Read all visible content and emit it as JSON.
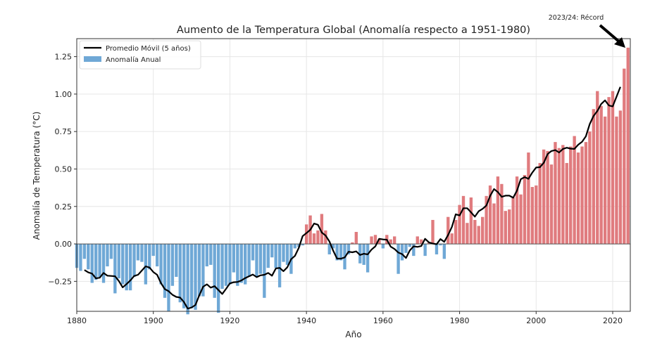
{
  "chart_data": {
    "type": "bar",
    "title": "Aumento de la Temperatura Global (Anomalía respecto a 1951-1980)",
    "xlabel": "Año",
    "ylabel": "Anomalía de Temperatura (°C)",
    "xlim": [
      1880,
      2024.6
    ],
    "ylim": [
      -0.45,
      1.37
    ],
    "grid": true,
    "xticks": [
      1880,
      1900,
      1920,
      1940,
      1960,
      1980,
      2000,
      2020
    ],
    "xtick_labels": [
      "1880",
      "1900",
      "1920",
      "1940",
      "1960",
      "1980",
      "2000",
      "2020"
    ],
    "yticks": [
      -0.25,
      0.0,
      0.25,
      0.5,
      0.75,
      1.0,
      1.25
    ],
    "ytick_labels": [
      "−0.25",
      "0.00",
      "0.25",
      "0.50",
      "0.75",
      "1.00",
      "1.25"
    ],
    "legend": {
      "placement": "top-left",
      "entries": [
        {
          "label": "Promedio Móvil (5 años)",
          "kind": "line",
          "color": "#000000"
        },
        {
          "label": "Anomalía Anual",
          "kind": "bar",
          "color": "#6fa8d6"
        }
      ]
    },
    "colors": {
      "positive": "#e07b7e",
      "negative": "#6fa8d6",
      "line": "#000000",
      "zero_line": "#555555"
    },
    "annotation": {
      "text": "2023/24: Récord",
      "target_year": 2024,
      "target_value": 1.31
    },
    "annual_anomaly": {
      "start_year": 1880,
      "values": [
        -0.16,
        -0.18,
        -0.1,
        -0.17,
        -0.26,
        -0.24,
        -0.22,
        -0.26,
        -0.15,
        -0.1,
        -0.33,
        -0.23,
        -0.27,
        -0.31,
        -0.31,
        -0.22,
        -0.11,
        -0.12,
        -0.27,
        -0.17,
        -0.08,
        -0.15,
        -0.27,
        -0.36,
        -0.45,
        -0.28,
        -0.22,
        -0.39,
        -0.43,
        -0.47,
        -0.43,
        -0.44,
        -0.35,
        -0.35,
        -0.15,
        -0.14,
        -0.36,
        -0.46,
        -0.3,
        -0.28,
        -0.27,
        -0.19,
        -0.28,
        -0.26,
        -0.27,
        -0.22,
        -0.11,
        -0.22,
        -0.2,
        -0.36,
        -0.16,
        -0.09,
        -0.16,
        -0.29,
        -0.12,
        -0.14,
        -0.2,
        -0.03,
        -0.02,
        -0.01,
        0.13,
        0.19,
        0.07,
        0.09,
        0.2,
        0.09,
        -0.07,
        -0.03,
        -0.11,
        -0.11,
        -0.17,
        -0.07,
        0.01,
        0.08,
        -0.13,
        -0.14,
        -0.19,
        0.05,
        0.06,
        0.03,
        -0.03,
        0.06,
        0.03,
        0.05,
        -0.2,
        -0.11,
        -0.06,
        -0.02,
        -0.08,
        0.05,
        0.03,
        -0.08,
        0.01,
        0.16,
        -0.07,
        -0.01,
        -0.1,
        0.18,
        0.07,
        0.16,
        0.26,
        0.32,
        0.14,
        0.31,
        0.16,
        0.12,
        0.18,
        0.32,
        0.39,
        0.27,
        0.45,
        0.4,
        0.22,
        0.23,
        0.31,
        0.45,
        0.33,
        0.46,
        0.61,
        0.38,
        0.39,
        0.54,
        0.63,
        0.62,
        0.53,
        0.68,
        0.64,
        0.66,
        0.54,
        0.65,
        0.72,
        0.61,
        0.65,
        0.68,
        0.75,
        0.9,
        1.02,
        0.92,
        0.85,
        0.98,
        1.02,
        0.85,
        0.89,
        1.17,
        1.31
      ]
    },
    "moving_average_window": 5
  }
}
